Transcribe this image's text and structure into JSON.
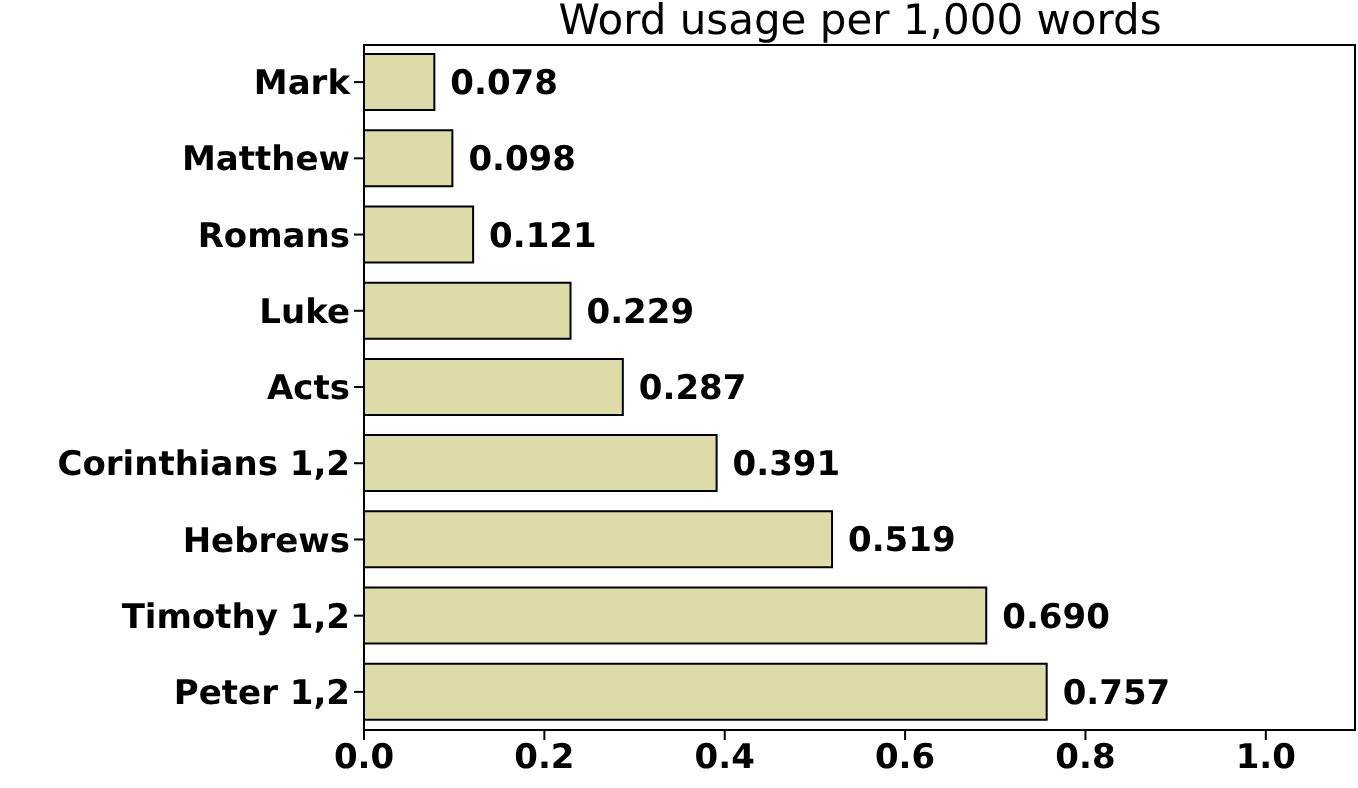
{
  "chart_data": {
    "type": "bar",
    "orientation": "horizontal",
    "title": "Word usage per 1,000 words",
    "categories": [
      "Mark",
      "Matthew",
      "Romans",
      "Luke",
      "Acts",
      "Corinthians 1,2",
      "Hebrews",
      "Timothy 1,2",
      "Peter 1,2"
    ],
    "values": [
      0.078,
      0.098,
      0.121,
      0.229,
      0.287,
      0.391,
      0.519,
      0.69,
      0.757
    ],
    "value_labels": [
      "0.078",
      "0.098",
      "0.121",
      "0.229",
      "0.287",
      "0.391",
      "0.519",
      "0.690",
      "0.757"
    ],
    "color": "#dddca8",
    "xlim": [
      0,
      1.1
    ],
    "xticks": [
      {
        "value": 0,
        "label": "0.0"
      },
      {
        "value": 0.2,
        "label": "0.2"
      },
      {
        "value": 0.4,
        "label": "0.4"
      },
      {
        "value": 0.6,
        "label": "0.6"
      },
      {
        "value": 0.8,
        "label": "0.8"
      },
      {
        "value": 1,
        "label": "1.0"
      }
    ]
  }
}
